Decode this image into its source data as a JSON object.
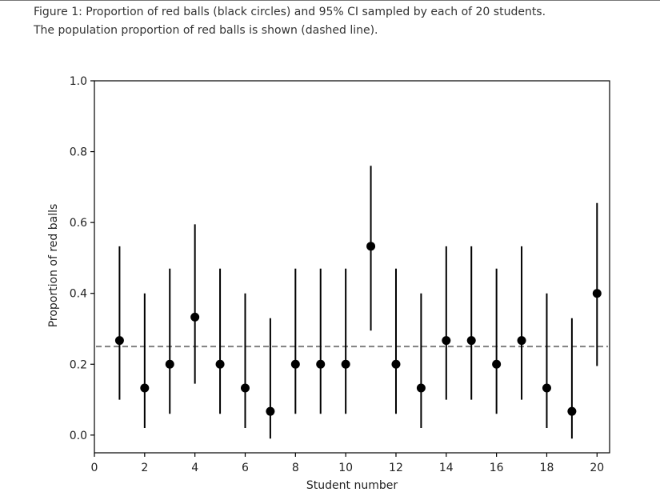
{
  "caption": {
    "line1": "Figure 1: Proportion of red balls (black circles) and 95% CI sampled by each of 20 students.",
    "line2": "The population proportion of red balls is shown (dashed line)."
  },
  "chart_data": {
    "type": "scatter",
    "title": "",
    "xlabel": "Student number",
    "ylabel": "Proportion of red balls",
    "xlim": [
      0,
      20.5
    ],
    "ylim": [
      -0.05,
      1.0
    ],
    "xticks": [
      0,
      2,
      4,
      6,
      8,
      10,
      12,
      14,
      16,
      18,
      20
    ],
    "yticks": [
      0.0,
      0.2,
      0.4,
      0.6,
      0.8,
      1.0
    ],
    "xtick_labels": [
      "0",
      "2",
      "4",
      "6",
      "8",
      "10",
      "12",
      "14",
      "16",
      "18",
      "20"
    ],
    "ytick_labels": [
      "0.0",
      "0.2",
      "0.4",
      "0.6",
      "0.8",
      "1.0"
    ],
    "reference_line": {
      "y": 0.25,
      "style": "dashed",
      "color": "#808080"
    },
    "grid": false,
    "marker_color": "#000000",
    "points": [
      {
        "x": 1,
        "y": 0.267,
        "lo": 0.1,
        "hi": 0.533
      },
      {
        "x": 2,
        "y": 0.133,
        "lo": 0.02,
        "hi": 0.4
      },
      {
        "x": 3,
        "y": 0.2,
        "lo": 0.06,
        "hi": 0.47
      },
      {
        "x": 4,
        "y": 0.333,
        "lo": 0.145,
        "hi": 0.595
      },
      {
        "x": 5,
        "y": 0.2,
        "lo": 0.06,
        "hi": 0.47
      },
      {
        "x": 6,
        "y": 0.133,
        "lo": 0.02,
        "hi": 0.4
      },
      {
        "x": 7,
        "y": 0.067,
        "lo": -0.01,
        "hi": 0.33
      },
      {
        "x": 8,
        "y": 0.2,
        "lo": 0.06,
        "hi": 0.47
      },
      {
        "x": 9,
        "y": 0.2,
        "lo": 0.06,
        "hi": 0.47
      },
      {
        "x": 10,
        "y": 0.2,
        "lo": 0.06,
        "hi": 0.47
      },
      {
        "x": 11,
        "y": 0.533,
        "lo": 0.295,
        "hi": 0.76
      },
      {
        "x": 12,
        "y": 0.2,
        "lo": 0.06,
        "hi": 0.47
      },
      {
        "x": 13,
        "y": 0.133,
        "lo": 0.02,
        "hi": 0.4
      },
      {
        "x": 14,
        "y": 0.267,
        "lo": 0.1,
        "hi": 0.533
      },
      {
        "x": 15,
        "y": 0.267,
        "lo": 0.1,
        "hi": 0.533
      },
      {
        "x": 16,
        "y": 0.2,
        "lo": 0.06,
        "hi": 0.47
      },
      {
        "x": 17,
        "y": 0.267,
        "lo": 0.1,
        "hi": 0.533
      },
      {
        "x": 18,
        "y": 0.133,
        "lo": 0.02,
        "hi": 0.4
      },
      {
        "x": 19,
        "y": 0.067,
        "lo": -0.01,
        "hi": 0.33
      },
      {
        "x": 20,
        "y": 0.4,
        "lo": 0.195,
        "hi": 0.655
      }
    ]
  }
}
